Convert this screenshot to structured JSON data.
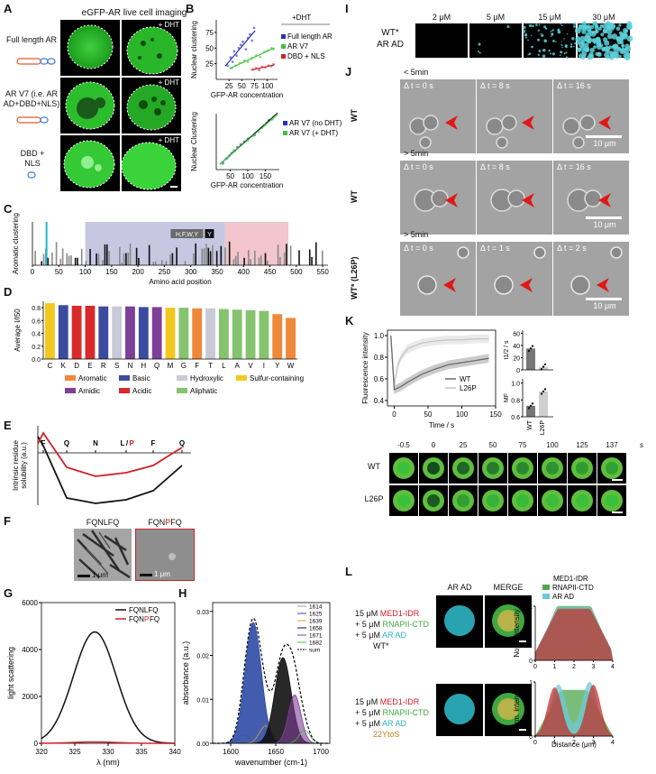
{
  "panels": {
    "A": {
      "letter": "A",
      "title": "eGFP-AR live cell imaging",
      "row_labels": [
        "Full length AR",
        "AR V7 (i.e. AR AD+DBD+NLS)",
        "DBD + NLS"
      ],
      "dht_label": "+ DHT"
    },
    "B": {
      "letter": "B",
      "top_legend_title": "+DHT",
      "top_ylabel": "Nuclear clustering",
      "top_xlabel": "GFP-AR concentration",
      "bottom_ylabel": "Nuclear Clustering",
      "bottom_xlabel": "GFP-AR concentration"
    },
    "C": {
      "letter": "C",
      "ylabel": "Aromatic clustering",
      "xlabel": "Amino acid position",
      "box_label": "H,F,W,Y",
      "box_label2": "Y"
    },
    "D": {
      "letter": "D",
      "ylabel": "Average I/I50",
      "legend": [
        {
          "name": "Aromatic",
          "color": "#f0883a"
        },
        {
          "name": "Basic",
          "color": "#3b4ba0"
        },
        {
          "name": "Hydroxylic",
          "color": "#c8cad8"
        },
        {
          "name": "Sulfur-containing",
          "color": "#f2c81e"
        },
        {
          "name": "Amidic",
          "color": "#7e3f98"
        },
        {
          "name": "Acidic",
          "color": "#d82a2a"
        },
        {
          "name": "Aliphatic",
          "color": "#86c36e"
        }
      ]
    },
    "E": {
      "letter": "E",
      "ylabel": "Intrinsic residue solubility (a.u.)",
      "residues": [
        "F",
        "Q",
        "N",
        "L/P",
        "F",
        "Q"
      ]
    },
    "F": {
      "letter": "F",
      "left_label": "FQNLFQ",
      "right_label_a": "FQN",
      "right_label_b": "P",
      "right_label_c": "FQ",
      "scale": "1 μm"
    },
    "G": {
      "letter": "G",
      "ylabel": "light scattering",
      "xlabel": "λ (nm)",
      "legend": [
        "FQNLFQ",
        "FQNPFQ"
      ],
      "legend_b_parts": [
        "FQN",
        "P",
        "FQ"
      ]
    },
    "H": {
      "letter": "H",
      "ylabel": "absorbance (a.u.)",
      "xlabel": "wavenumber (cm-1)",
      "legend": [
        "1614",
        "1625",
        "1639",
        "1658",
        "1671",
        "1682",
        "sum"
      ]
    },
    "I": {
      "letter": "I",
      "concentrations": [
        "2 μM",
        "5 μM",
        "15 μM",
        "30 μM"
      ],
      "row_label_a": "WT*",
      "row_label_b": "AR AD"
    },
    "J": {
      "letter": "J",
      "rows": [
        {
          "time_label": "< 5min",
          "row_label": "WT",
          "dts": [
            "Δ t = 0 s",
            "Δ t = 8 s",
            "Δ t = 16 s"
          ]
        },
        {
          "time_label": "> 5min",
          "row_label": "WT",
          "dts": [
            "Δ t = 0 s",
            "Δ t = 8 s",
            "Δ t = 16 s"
          ]
        },
        {
          "time_label": "> 5min",
          "row_label": "WT* (L26P)",
          "dts": [
            "Δ t = 0 s",
            "Δ t = 1 s",
            "Δ t = 2 s"
          ]
        }
      ],
      "scale": "10 μm"
    },
    "K": {
      "letter": "K",
      "ylabel": "Fluorescence intensity",
      "xlabel": "Time / s",
      "legend": [
        "WT",
        "L26P"
      ],
      "t_label": "t1/2 / s",
      "mf_label": "MF",
      "times": [
        "-0.5",
        "0",
        "25",
        "50",
        "75",
        "100",
        "125",
        "137",
        "s"
      ],
      "row_labels": [
        "WT",
        "L26P"
      ]
    },
    "L": {
      "letter": "L",
      "col_labels": [
        "AR AD",
        "MERGE"
      ],
      "rows": [
        {
          "l1a": "15 μM ",
          "l1b": "MED1-IDR",
          "l2a": "+ 5 μM ",
          "l2b": "RNAPII-CTD",
          "l3a": "+ 5 μM ",
          "l3b": "AR AD",
          "l4": "WT*"
        },
        {
          "l1a": "15 μM ",
          "l1b": "MED1-IDR",
          "l2a": "+ 5 μM ",
          "l2b": "RNAPII-CTD",
          "l3a": "+ 5 μM ",
          "l3b": "AR AD",
          "l4": "22YtoS"
        }
      ],
      "legend": [
        "MED1-IDR",
        "RNAPII-CTD",
        "AR AD"
      ],
      "ylabel": "Norm. intensity",
      "xlabel": "Distance (μm)"
    }
  },
  "chart_data": [
    {
      "type": "scatter",
      "title": "",
      "legend_title": "+DHT",
      "xlabel": "GFP-AR concentration",
      "ylabel": "Nuclear clustering",
      "xticks": [
        "25",
        "50",
        "75",
        "100"
      ],
      "yticks": [
        "25",
        "50",
        "75"
      ],
      "xlim": [
        0,
        120
      ],
      "ylim": [
        0,
        95
      ],
      "series": [
        {
          "name": "Full length AR",
          "color": "#2d2fbf",
          "x": [
            22,
            28,
            32,
            35,
            40,
            44,
            48,
            52,
            58,
            62,
            66,
            70,
            74
          ],
          "y": [
            22,
            35,
            28,
            45,
            38,
            50,
            55,
            60,
            48,
            66,
            72,
            62,
            82
          ]
        },
        {
          "name": "AR V7",
          "color": "#3fc33f",
          "x": [
            30,
            38,
            46,
            55,
            62,
            70,
            78,
            86,
            94,
            100,
            108,
            112
          ],
          "y": [
            18,
            22,
            26,
            30,
            28,
            34,
            38,
            36,
            44,
            46,
            50,
            48
          ]
        },
        {
          "name": "DBD + NLS",
          "color": "#d0202a",
          "x": [
            72,
            78,
            84,
            90,
            96,
            102,
            108,
            112
          ],
          "y": [
            16,
            18,
            15,
            20,
            19,
            22,
            21,
            24
          ]
        }
      ]
    },
    {
      "type": "scatter",
      "title": "",
      "xlabel": "GFP-AR concentration",
      "ylabel": "Nuclear Clustering",
      "xticks": [
        "50",
        "100",
        "150"
      ],
      "xlim": [
        10,
        190
      ],
      "ylim": [
        0,
        100
      ],
      "series": [
        {
          "name": "AR V7 (no DHT)",
          "color": "#2d2fbf",
          "x": [
            30,
            40,
            48,
            55,
            62,
            70,
            80,
            90,
            100,
            120,
            140,
            160
          ],
          "y": [
            12,
            20,
            25,
            30,
            33,
            40,
            45,
            50,
            55,
            62,
            75,
            88
          ]
        },
        {
          "name": "AR V7  (+ DHT)",
          "color": "#3fc33f",
          "x": [
            28,
            36,
            44,
            52,
            60,
            70,
            85,
            100,
            115,
            130,
            150,
            170
          ],
          "y": [
            10,
            18,
            22,
            28,
            35,
            38,
            46,
            52,
            60,
            68,
            80,
            90
          ]
        }
      ]
    },
    {
      "type": "bar",
      "title": "",
      "xlabel": "Amino acid position",
      "ylabel": "Aromatic clustering",
      "xticks": [
        "0",
        "50",
        "100",
        "150",
        "200",
        "250",
        "300",
        "350",
        "400",
        "450",
        "500",
        "550"
      ],
      "xlim": [
        0,
        560
      ]
    },
    {
      "type": "bar",
      "title": "",
      "ylabel": "Average I/I50",
      "categories": [
        "C",
        "K",
        "D",
        "E",
        "R",
        "S",
        "N",
        "H",
        "Q",
        "M",
        "G",
        "F",
        "T",
        "L",
        "A",
        "V",
        "I",
        "Y",
        "W"
      ],
      "yticks": [
        "0.0",
        "0.2",
        "0.4",
        "0.6",
        "0.8"
      ],
      "ylim": [
        0,
        0.9
      ],
      "values": [
        0.87,
        0.84,
        0.83,
        0.83,
        0.82,
        0.82,
        0.82,
        0.81,
        0.81,
        0.8,
        0.8,
        0.79,
        0.79,
        0.78,
        0.77,
        0.76,
        0.75,
        0.7,
        0.64
      ],
      "colors": [
        "#f2c81e",
        "#3b4ba0",
        "#d82a2a",
        "#d82a2a",
        "#3b4ba0",
        "#c8cad8",
        "#7e3f98",
        "#3b4ba0",
        "#7e3f98",
        "#f2c81e",
        "#86c36e",
        "#f0883a",
        "#c8cad8",
        "#86c36e",
        "#86c36e",
        "#86c36e",
        "#86c36e",
        "#f0883a",
        "#f0883a"
      ]
    },
    {
      "type": "line",
      "title": "",
      "ylabel": "light scattering",
      "xlabel": "λ (nm)",
      "xticks": [
        "320",
        "325",
        "330",
        "335",
        "340"
      ],
      "yticks": [
        "0",
        "2000",
        "4000",
        "6000"
      ],
      "xlim": [
        320,
        340
      ],
      "ylim": [
        0,
        6000
      ],
      "series": [
        {
          "name": "FQNLFQ",
          "color": "#111111",
          "peak_x": 328,
          "peak_y": 4750,
          "width": 3.2
        },
        {
          "name": "FQNPFQ",
          "color": "#d0202a",
          "peak_x": 328,
          "peak_y": 60,
          "width": 3.2
        }
      ]
    },
    {
      "type": "line",
      "title": "",
      "ylabel": "absorbance (a.u.)",
      "xlabel": "wavenumber (cm-1)",
      "xticks": [
        "1600",
        "1650",
        "1700"
      ],
      "yticks": [
        "0.00",
        "0.01",
        "0.02",
        "0.03"
      ],
      "xlim": [
        1580,
        1710
      ],
      "ylim": [
        0,
        0.032
      ],
      "components": [
        {
          "name": "1614",
          "center": 1614,
          "amp": 0.002,
          "w": 6
        },
        {
          "name": "1625",
          "center": 1625,
          "amp": 0.0275,
          "w": 9
        },
        {
          "name": "1639",
          "center": 1639,
          "amp": 0.004,
          "w": 7
        },
        {
          "name": "1658",
          "center": 1658,
          "amp": 0.0195,
          "w": 9
        },
        {
          "name": "1671",
          "center": 1671,
          "amp": 0.011,
          "w": 7
        },
        {
          "name": "1682",
          "center": 1682,
          "amp": 0.003,
          "w": 6
        }
      ]
    },
    {
      "type": "line",
      "title": "",
      "ylabel": "Fluorescence intensity",
      "xlabel": "Time / s",
      "xticks": [
        "0",
        "50",
        "100",
        "150"
      ],
      "yticks": [
        "0.4",
        "0.6",
        "0.8",
        "1.0"
      ],
      "xlim": [
        -10,
        150
      ],
      "ylim": [
        0.35,
        1.05
      ],
      "series": [
        {
          "name": "WT",
          "color": "#6b6b6b",
          "x": [
            -5,
            0,
            10,
            20,
            40,
            60,
            80,
            100,
            120,
            140
          ],
          "y": [
            1.0,
            0.5,
            0.53,
            0.57,
            0.64,
            0.69,
            0.73,
            0.75,
            0.77,
            0.79
          ]
        },
        {
          "name": "L26P",
          "color": "#c4c4c4",
          "x": [
            -5,
            0,
            5,
            10,
            20,
            40,
            60,
            80,
            100,
            120,
            140
          ],
          "y": [
            1.0,
            0.55,
            0.72,
            0.8,
            0.88,
            0.93,
            0.95,
            0.96,
            0.96,
            0.97,
            0.97
          ]
        }
      ]
    },
    {
      "type": "bar",
      "title": "",
      "ylabel": "t1/2 / s",
      "categories": [
        "WT",
        "L26P"
      ],
      "yticks": [
        "0",
        "20",
        "40",
        "60"
      ],
      "ylim": [
        0,
        65
      ],
      "values": [
        35,
        5
      ]
    },
    {
      "type": "bar",
      "title": "",
      "ylabel": "MF",
      "categories": [
        "WT",
        "L26P"
      ],
      "yticks": [
        "0.6",
        "0.8",
        "1.0"
      ],
      "ylim": [
        0.6,
        1.05
      ],
      "values": [
        0.73,
        0.9
      ]
    }
  ]
}
